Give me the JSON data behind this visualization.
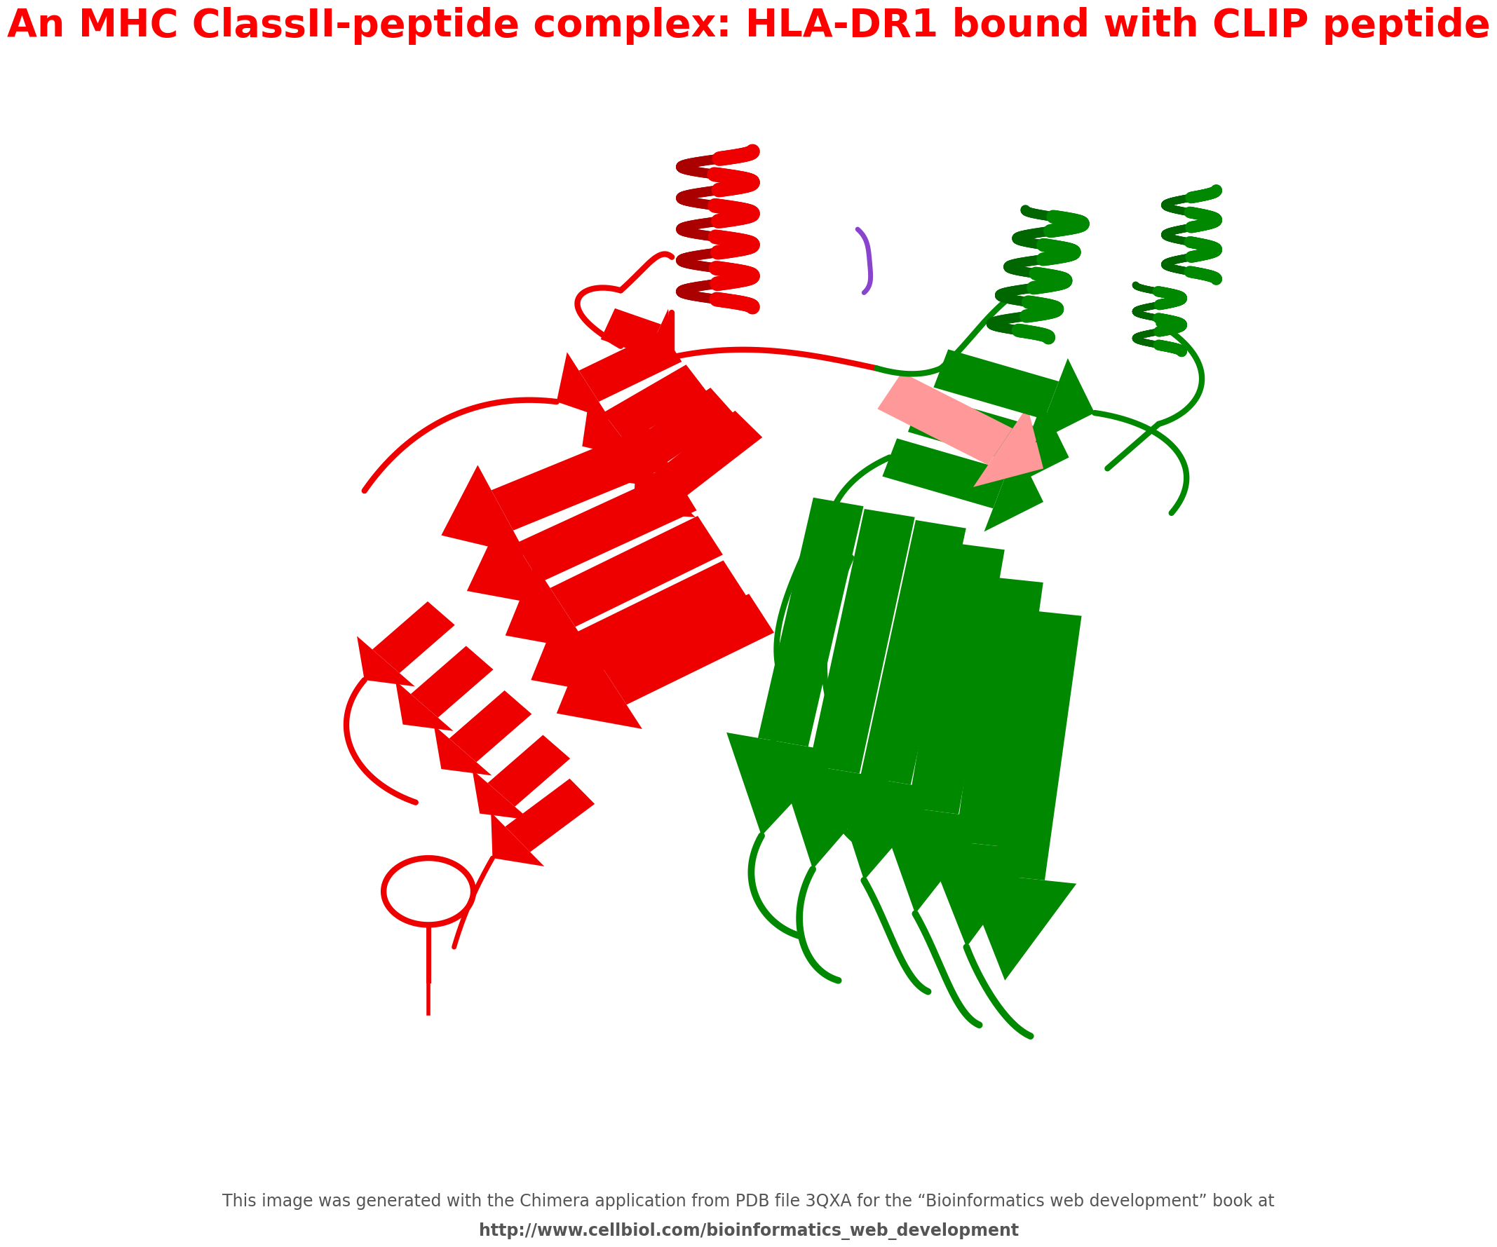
{
  "title": "An MHC ClassII-peptide complex: HLA-DR1 bound with CLIP peptide",
  "title_color": "#ff0000",
  "title_fontsize": 40,
  "title_fontweight": "bold",
  "attribution_line1": "This image was generated with the Chimera application from PDB file 3QXA for the “Bioinformatics web development” book at",
  "attribution_line2": "http://www.cellbiol.com/bioinformatics_web_development",
  "attribution_color": "#555555",
  "attribution_fontsize": 17,
  "background_color": "#ffffff",
  "fig_width": 20.3,
  "fig_height": 18.68,
  "red_color": "#ee0000",
  "green_color": "#008800",
  "purple_color": "#8844cc",
  "pink_color": "#ff9999",
  "dark_red": "#aa0000",
  "dark_green": "#006600"
}
